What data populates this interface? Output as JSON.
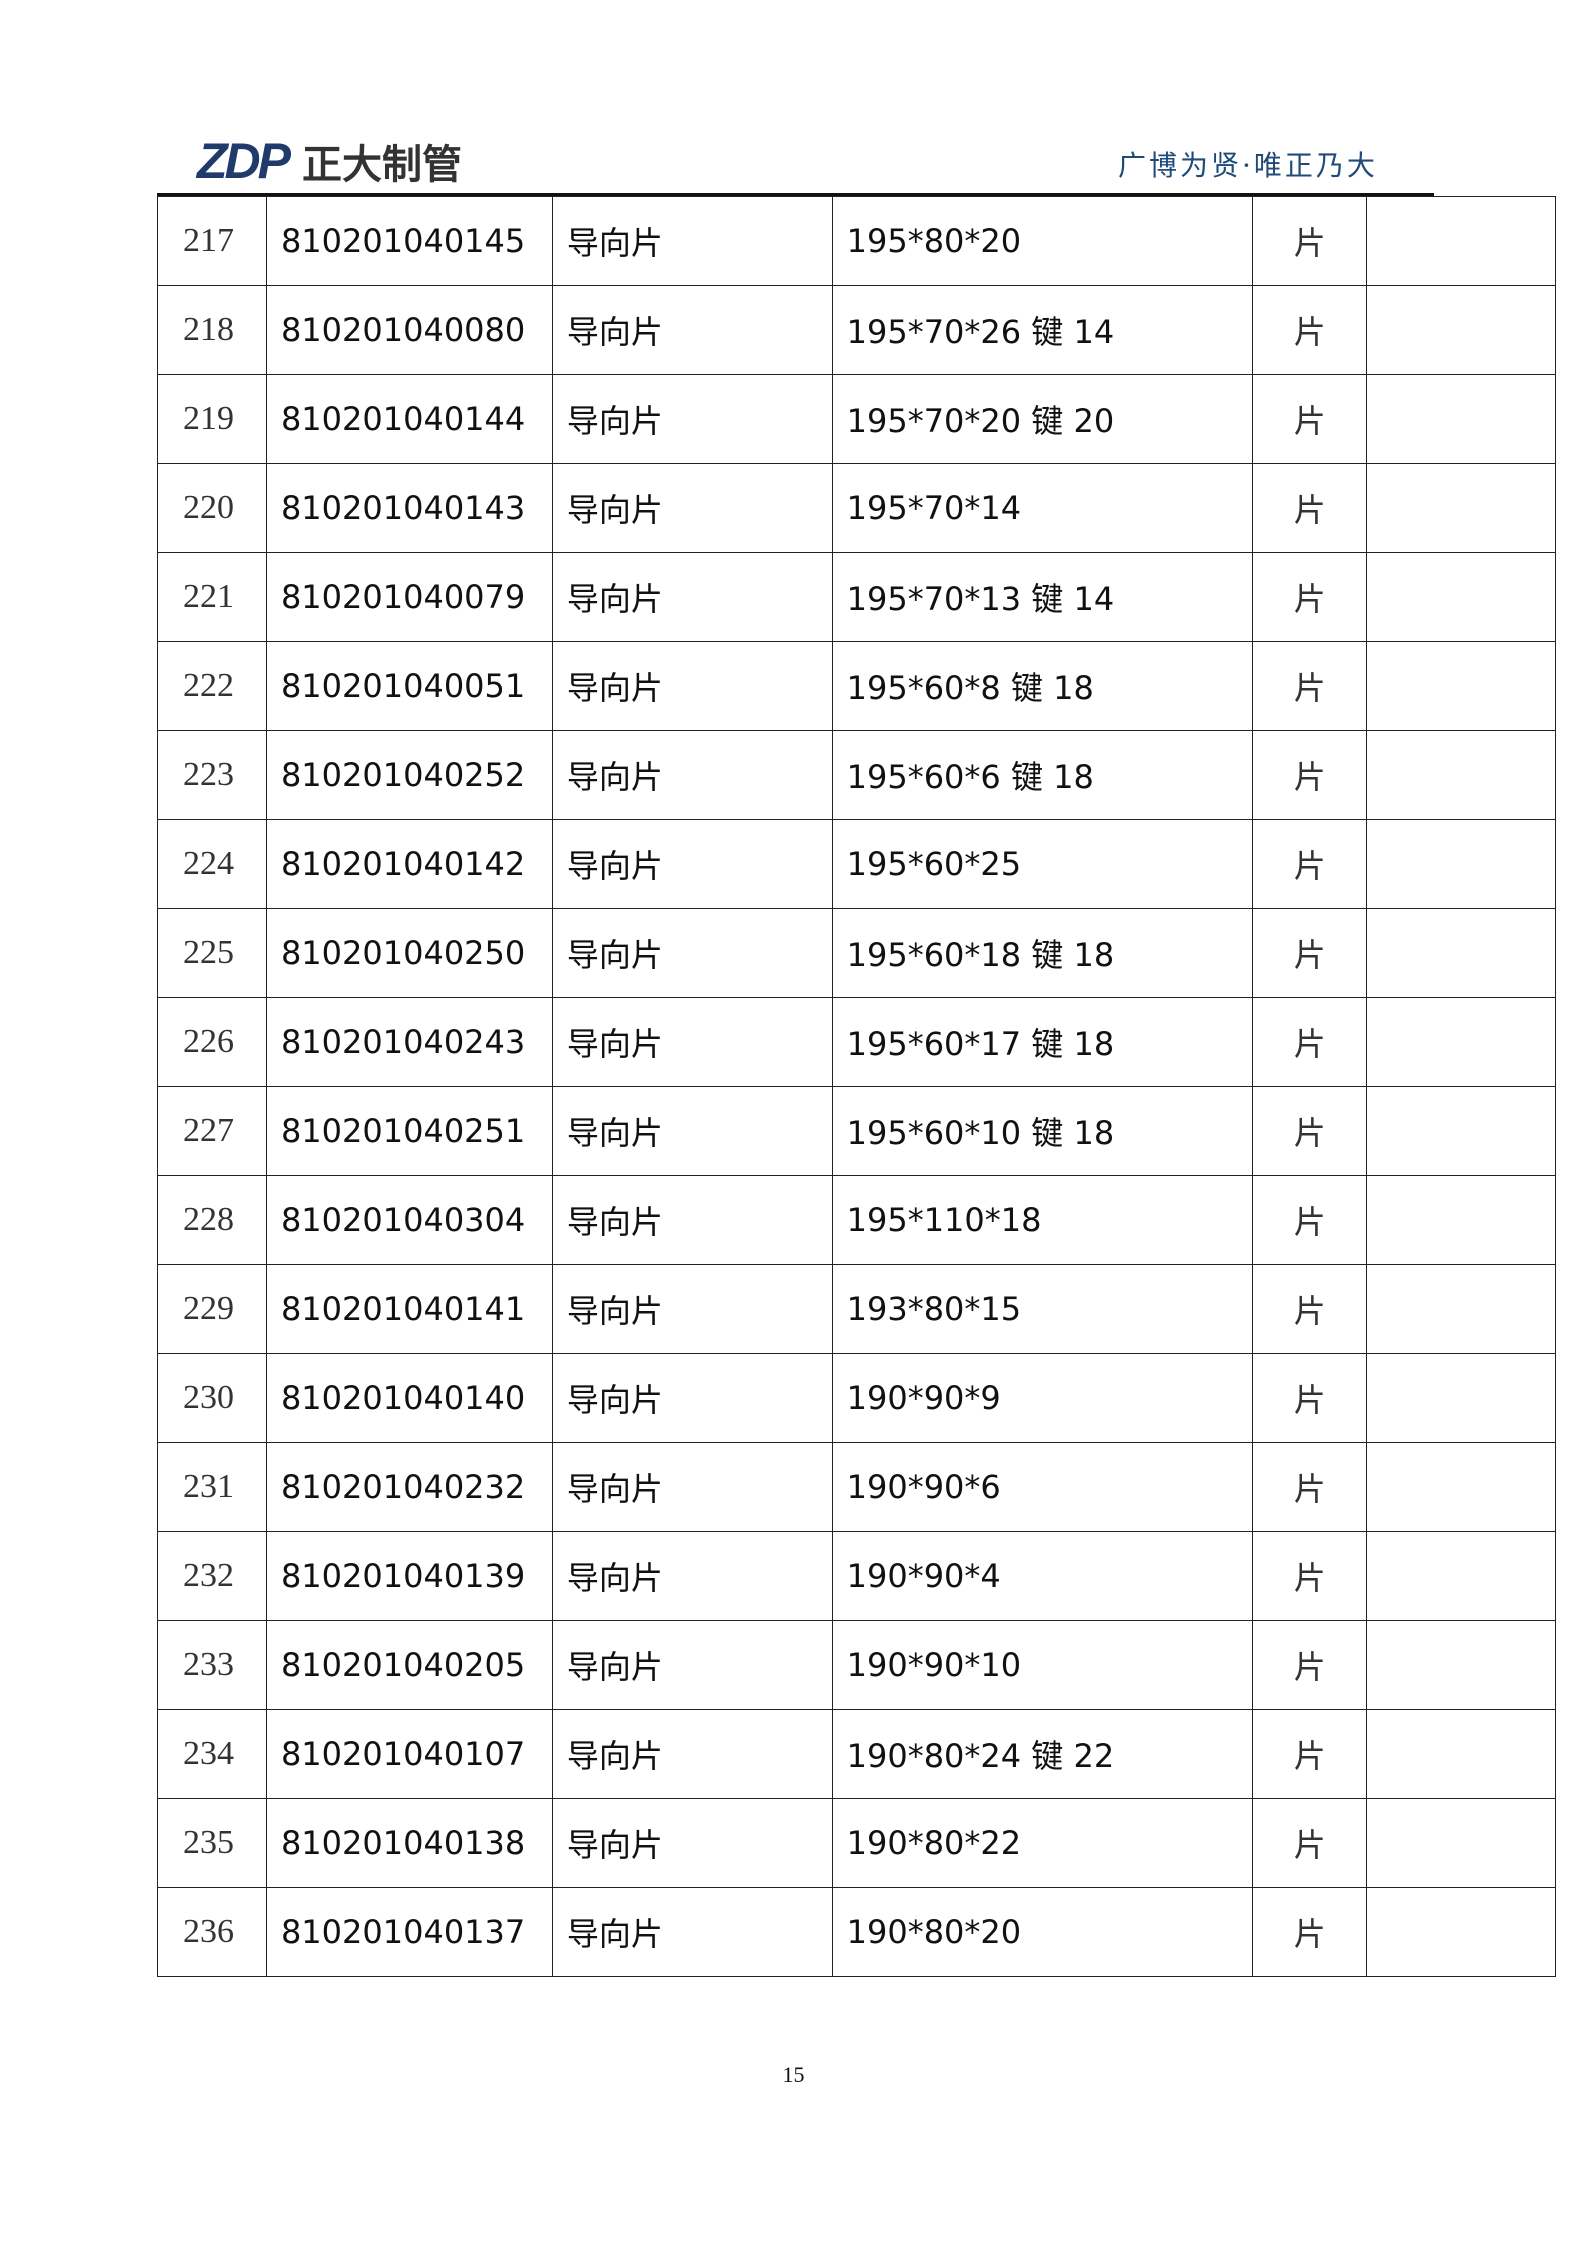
{
  "header": {
    "logo_mark": "ZDP",
    "logo_name": "正大制管",
    "slogan": "广博为贤·唯正乃大"
  },
  "rows": [
    [
      "217",
      "810201040145",
      "导向片",
      "195*80*20",
      "片",
      ""
    ],
    [
      "218",
      "810201040080",
      "导向片",
      "195*70*26 键 14",
      "片",
      ""
    ],
    [
      "219",
      "810201040144",
      "导向片",
      "195*70*20 键 20",
      "片",
      ""
    ],
    [
      "220",
      "810201040143",
      "导向片",
      "195*70*14",
      "片",
      ""
    ],
    [
      "221",
      "810201040079",
      "导向片",
      "195*70*13 键 14",
      "片",
      ""
    ],
    [
      "222",
      "810201040051",
      "导向片",
      "195*60*8 键 18",
      "片",
      ""
    ],
    [
      "223",
      "810201040252",
      "导向片",
      "195*60*6 键 18",
      "片",
      ""
    ],
    [
      "224",
      "810201040142",
      "导向片",
      "195*60*25",
      "片",
      ""
    ],
    [
      "225",
      "810201040250",
      "导向片",
      "195*60*18 键 18",
      "片",
      ""
    ],
    [
      "226",
      "810201040243",
      "导向片",
      "195*60*17 键 18",
      "片",
      ""
    ],
    [
      "227",
      "810201040251",
      "导向片",
      "195*60*10 键 18",
      "片",
      ""
    ],
    [
      "228",
      "810201040304",
      "导向片",
      "195*110*18",
      "片",
      ""
    ],
    [
      "229",
      "810201040141",
      "导向片",
      "193*80*15",
      "片",
      ""
    ],
    [
      "230",
      "810201040140",
      "导向片",
      "190*90*9",
      "片",
      ""
    ],
    [
      "231",
      "810201040232",
      "导向片",
      "190*90*6",
      "片",
      ""
    ],
    [
      "232",
      "810201040139",
      "导向片",
      "190*90*4",
      "片",
      ""
    ],
    [
      "233",
      "810201040205",
      "导向片",
      "190*90*10",
      "片",
      ""
    ],
    [
      "234",
      "810201040107",
      "导向片",
      "190*80*24 键 22",
      "片",
      ""
    ],
    [
      "235",
      "810201040138",
      "导向片",
      "190*80*22",
      "片",
      ""
    ],
    [
      "236",
      "810201040137",
      "导向片",
      "190*80*20",
      "片",
      ""
    ]
  ],
  "footer": {
    "page_number": "15"
  }
}
